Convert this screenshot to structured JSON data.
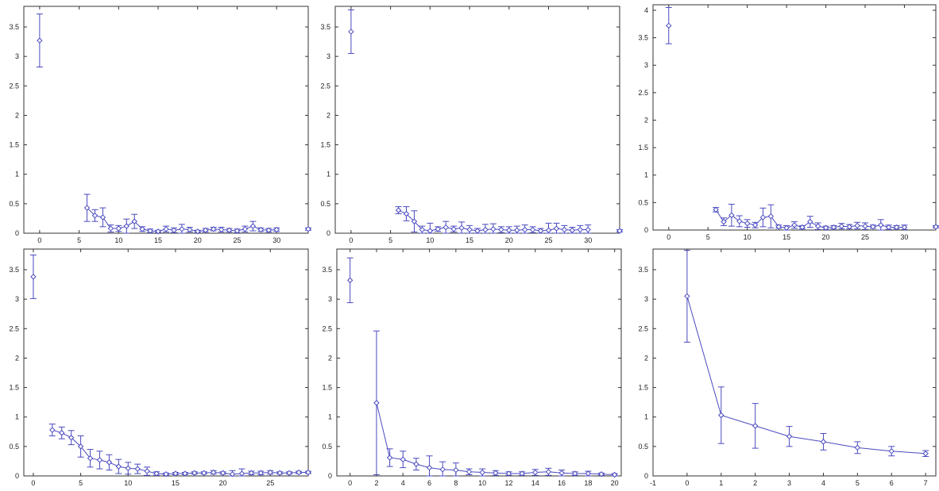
{
  "style": {
    "series_color": "#4a4ac0",
    "axis_color": "#333333"
  },
  "chart_data": [
    {
      "type": "scatter",
      "error_bars": true,
      "grid": false,
      "xlim": [
        -2,
        34
      ],
      "ylim": [
        0,
        3.85
      ],
      "xticks": [
        0,
        5,
        10,
        15,
        20,
        25,
        30
      ],
      "yticks": [
        0,
        0.5,
        1,
        1.5,
        2,
        2.5,
        3,
        3.5
      ],
      "series": [
        {
          "x": [
            0,
            6,
            7,
            8,
            9,
            10,
            11,
            12,
            13,
            14,
            15,
            16,
            17,
            18,
            19,
            20,
            21,
            22,
            23,
            24,
            25,
            26,
            27,
            28,
            29,
            30,
            34
          ],
          "y": [
            3.27,
            0.43,
            0.3,
            0.27,
            0.08,
            0.08,
            0.12,
            0.2,
            0.07,
            0.04,
            0.03,
            0.07,
            0.05,
            0.07,
            0.06,
            0.03,
            0.05,
            0.07,
            0.06,
            0.05,
            0.04,
            0.07,
            0.12,
            0.06,
            0.05,
            0.06,
            0.07
          ],
          "err": [
            0.45,
            0.23,
            0.1,
            0.16,
            0.06,
            0.05,
            0.12,
            0.12,
            0.04,
            0.03,
            0.02,
            0.05,
            0.04,
            0.08,
            0.04,
            0.02,
            0.03,
            0.03,
            0.04,
            0.03,
            0.03,
            0.05,
            0.08,
            0.03,
            0.03,
            0.03,
            0.02
          ],
          "connected": [
            false,
            true,
            true,
            true,
            true,
            true,
            true,
            true,
            true,
            true,
            true,
            true,
            true,
            true,
            true,
            true,
            true,
            true,
            true,
            true,
            true,
            true,
            true,
            true,
            true,
            true,
            false
          ]
        }
      ]
    },
    {
      "type": "scatter",
      "error_bars": true,
      "grid": false,
      "xlim": [
        -2,
        34
      ],
      "ylim": [
        0,
        3.85
      ],
      "xticks": [
        0,
        5,
        10,
        15,
        20,
        25,
        30
      ],
      "yticks": [
        0,
        0.5,
        1,
        1.5,
        2,
        2.5,
        3,
        3.5
      ],
      "series": [
        {
          "x": [
            0,
            6,
            7,
            8,
            9,
            10,
            11,
            12,
            13,
            14,
            15,
            16,
            17,
            18,
            19,
            20,
            21,
            22,
            23,
            24,
            25,
            26,
            27,
            28,
            29,
            30,
            34
          ],
          "y": [
            3.42,
            0.39,
            0.33,
            0.2,
            0.06,
            0.04,
            0.07,
            0.1,
            0.07,
            0.09,
            0.06,
            0.04,
            0.06,
            0.07,
            0.06,
            0.05,
            0.05,
            0.06,
            0.06,
            0.04,
            0.05,
            0.08,
            0.06,
            0.05,
            0.06,
            0.06,
            0.04
          ],
          "err": [
            0.37,
            0.06,
            0.12,
            0.18,
            0.06,
            0.13,
            0.04,
            0.1,
            0.05,
            0.1,
            0.07,
            0.04,
            0.09,
            0.09,
            0.05,
            0.06,
            0.07,
            0.08,
            0.05,
            0.04,
            0.12,
            0.09,
            0.07,
            0.05,
            0.07,
            0.08,
            0.02
          ],
          "connected": [
            false,
            true,
            true,
            true,
            true,
            true,
            true,
            true,
            true,
            true,
            true,
            true,
            true,
            true,
            true,
            true,
            true,
            true,
            true,
            true,
            true,
            true,
            true,
            true,
            true,
            true,
            false
          ]
        }
      ]
    },
    {
      "type": "scatter",
      "error_bars": true,
      "grid": false,
      "xlim": [
        -2,
        34
      ],
      "ylim": [
        0,
        4.1
      ],
      "xticks": [
        0,
        5,
        10,
        15,
        20,
        25,
        30
      ],
      "yticks": [
        0,
        0.5,
        1,
        1.5,
        2,
        2.5,
        3,
        3.5,
        4
      ],
      "series": [
        {
          "x": [
            0,
            6,
            7,
            8,
            9,
            10,
            11,
            12,
            13,
            14,
            15,
            16,
            17,
            18,
            19,
            20,
            21,
            22,
            23,
            24,
            25,
            26,
            27,
            28,
            29,
            30,
            34
          ],
          "y": [
            3.72,
            0.37,
            0.15,
            0.27,
            0.16,
            0.12,
            0.09,
            0.23,
            0.25,
            0.06,
            0.04,
            0.09,
            0.05,
            0.15,
            0.07,
            0.04,
            0.05,
            0.07,
            0.06,
            0.08,
            0.07,
            0.06,
            0.09,
            0.05,
            0.05,
            0.05,
            0.06
          ],
          "err": [
            0.33,
            0.04,
            0.07,
            0.2,
            0.1,
            0.07,
            0.05,
            0.17,
            0.21,
            0.03,
            0.04,
            0.06,
            0.03,
            0.1,
            0.06,
            0.03,
            0.03,
            0.05,
            0.04,
            0.06,
            0.06,
            0.03,
            0.1,
            0.04,
            0.03,
            0.04,
            0.02
          ],
          "connected": [
            false,
            true,
            true,
            true,
            true,
            true,
            true,
            true,
            true,
            true,
            true,
            true,
            true,
            true,
            true,
            true,
            true,
            true,
            true,
            true,
            true,
            true,
            true,
            true,
            true,
            true,
            false
          ]
        }
      ]
    },
    {
      "type": "scatter",
      "error_bars": true,
      "grid": false,
      "xlim": [
        -1,
        29
      ],
      "ylim": [
        0,
        3.85
      ],
      "xticks": [
        0,
        5,
        10,
        15,
        20,
        25
      ],
      "yticks": [
        0,
        0.5,
        1,
        1.5,
        2,
        2.5,
        3,
        3.5
      ],
      "series": [
        {
          "x": [
            0,
            2,
            3,
            4,
            5,
            6,
            7,
            8,
            9,
            10,
            11,
            12,
            13,
            14,
            15,
            16,
            17,
            18,
            19,
            20,
            21,
            22,
            23,
            24,
            25,
            26,
            27,
            28,
            29
          ],
          "y": [
            3.38,
            0.78,
            0.73,
            0.65,
            0.5,
            0.3,
            0.27,
            0.23,
            0.16,
            0.13,
            0.12,
            0.08,
            0.04,
            0.03,
            0.04,
            0.04,
            0.05,
            0.05,
            0.06,
            0.05,
            0.03,
            0.04,
            0.05,
            0.05,
            0.06,
            0.05,
            0.05,
            0.06,
            0.06
          ],
          "err": [
            0.37,
            0.1,
            0.1,
            0.12,
            0.18,
            0.15,
            0.15,
            0.13,
            0.12,
            0.1,
            0.08,
            0.07,
            0.03,
            0.02,
            0.02,
            0.02,
            0.02,
            0.02,
            0.03,
            0.02,
            0.06,
            0.08,
            0.03,
            0.03,
            0.03,
            0.02,
            0.02,
            0.02,
            0.02
          ],
          "connected": [
            false,
            true,
            true,
            true,
            true,
            true,
            true,
            true,
            true,
            true,
            true,
            true,
            true,
            true,
            true,
            true,
            true,
            true,
            true,
            true,
            true,
            true,
            true,
            true,
            true,
            true,
            true,
            true,
            true
          ]
        }
      ]
    },
    {
      "type": "scatter",
      "error_bars": true,
      "grid": false,
      "xlim": [
        -1,
        20.5
      ],
      "ylim": [
        0,
        3.85
      ],
      "xticks": [
        0,
        2,
        4,
        6,
        8,
        10,
        12,
        14,
        16,
        18,
        20
      ],
      "yticks": [
        0,
        0.5,
        1,
        1.5,
        2,
        2.5,
        3,
        3.5
      ],
      "series": [
        {
          "x": [
            0,
            2,
            3,
            4,
            5,
            6,
            7,
            8,
            9,
            10,
            11,
            12,
            13,
            14,
            15,
            16,
            17,
            18,
            19,
            20
          ],
          "y": [
            3.32,
            1.24,
            0.31,
            0.28,
            0.2,
            0.14,
            0.11,
            0.1,
            0.07,
            0.06,
            0.05,
            0.04,
            0.04,
            0.06,
            0.07,
            0.05,
            0.04,
            0.04,
            0.03,
            0.02
          ],
          "err": [
            0.38,
            1.22,
            0.15,
            0.14,
            0.1,
            0.2,
            0.13,
            0.12,
            0.05,
            0.06,
            0.04,
            0.03,
            0.03,
            0.05,
            0.06,
            0.05,
            0.03,
            0.04,
            0.02,
            0.02
          ],
          "connected": [
            false,
            true,
            true,
            true,
            true,
            true,
            true,
            true,
            true,
            true,
            true,
            true,
            true,
            true,
            true,
            true,
            true,
            true,
            true,
            true
          ]
        }
      ]
    },
    {
      "type": "line",
      "error_bars": true,
      "grid": false,
      "xlim": [
        -1,
        7.3
      ],
      "ylim": [
        0,
        3.85
      ],
      "xticks": [
        -1,
        0,
        1,
        2,
        3,
        4,
        5,
        6,
        7
      ],
      "yticks": [
        0,
        0.5,
        1,
        1.5,
        2,
        2.5,
        3,
        3.5
      ],
      "series": [
        {
          "x": [
            0,
            1,
            2,
            3,
            4,
            5,
            6,
            7
          ],
          "y": [
            3.05,
            1.03,
            0.85,
            0.67,
            0.58,
            0.48,
            0.42,
            0.38
          ],
          "err": [
            0.78,
            0.48,
            0.38,
            0.17,
            0.14,
            0.1,
            0.08,
            0.05
          ],
          "connected": [
            true,
            true,
            true,
            true,
            true,
            true,
            true,
            true
          ]
        }
      ]
    }
  ]
}
